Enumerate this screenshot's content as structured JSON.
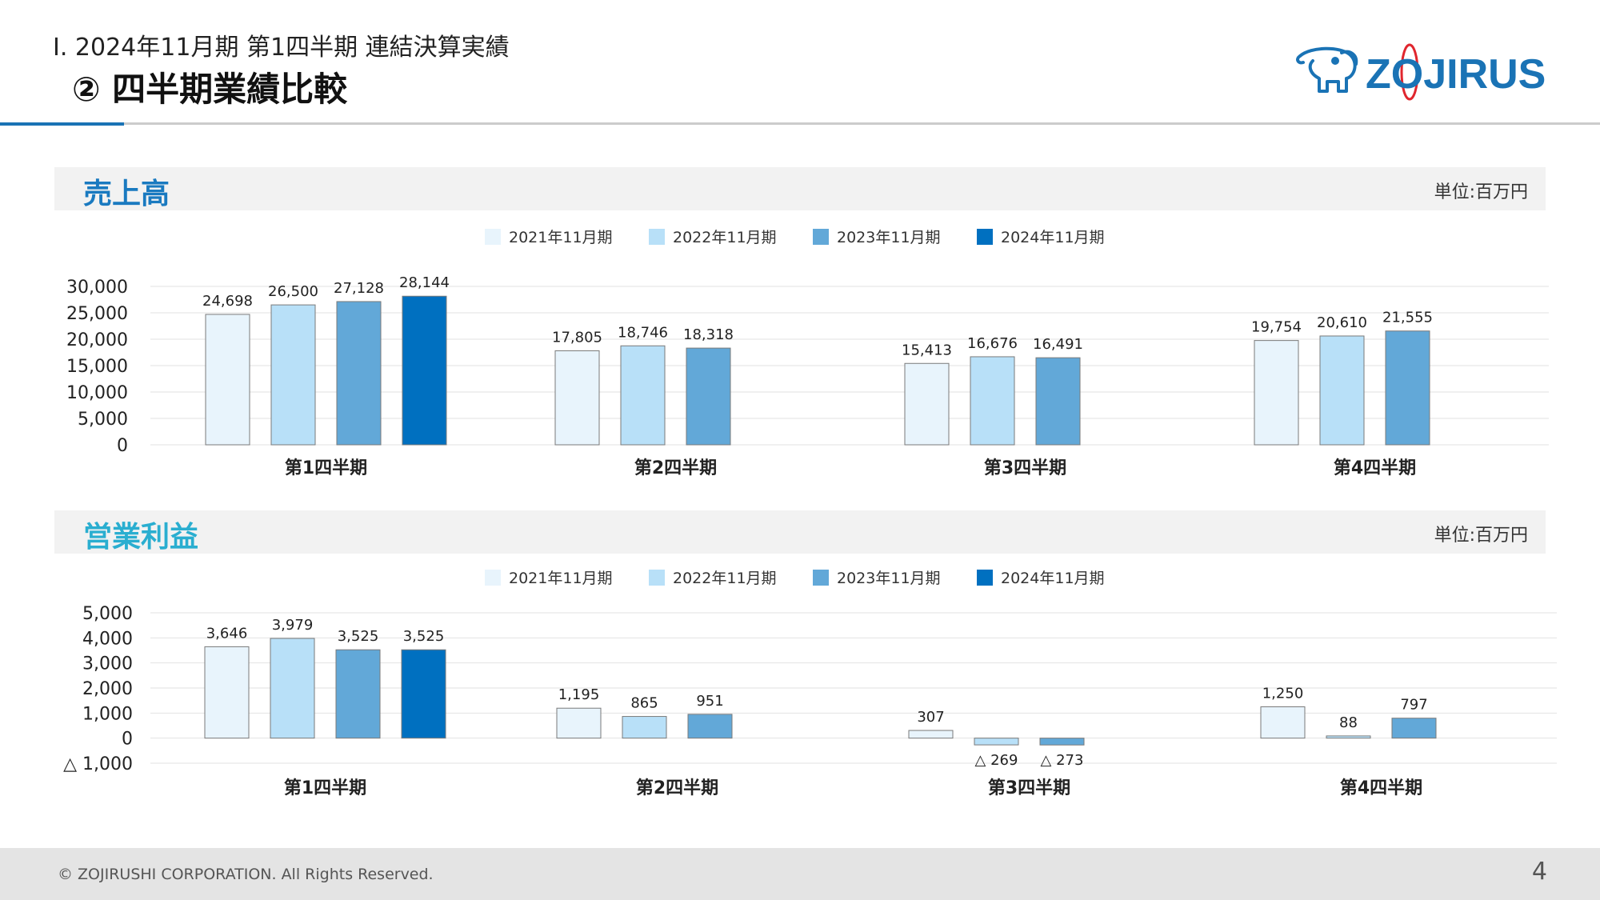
{
  "header": {
    "subtitle": "Ⅰ. 2024年11月期 第1四半期  連結決算実績",
    "title": "② 四半期業績比較",
    "logo_text": "ZOJIRUSHI"
  },
  "colors": {
    "accent": "#1a73b5",
    "series": [
      "#e8f4fc",
      "#b8e0f8",
      "#62a8d8",
      "#0070c0"
    ],
    "sales_title": "#1a7ac0",
    "profit_title": "#2aaed0"
  },
  "sales_section": {
    "title": "売上高",
    "unit": "単位:百万円"
  },
  "profit_section": {
    "title": "営業利益",
    "unit": "単位:百万円"
  },
  "chart_data": [
    {
      "type": "bar",
      "categories": [
        "第1四半期",
        "第2四半期",
        "第3四半期",
        "第4四半期"
      ],
      "series": [
        {
          "name": "2021年11月期",
          "values": [
            24698,
            17805,
            15413,
            19754
          ],
          "labels": [
            "24,698",
            "17,805",
            "15,413",
            "19,754"
          ]
        },
        {
          "name": "2022年11月期",
          "values": [
            26500,
            18746,
            16676,
            20610
          ],
          "labels": [
            "26,500",
            "18,746",
            "16,676",
            "20,610"
          ]
        },
        {
          "name": "2023年11月期",
          "values": [
            27128,
            18318,
            16491,
            21555
          ],
          "labels": [
            "27,128",
            "18,318",
            "16,491",
            "21,555"
          ]
        },
        {
          "name": "2024年11月期",
          "values": [
            28144,
            null,
            null,
            null
          ],
          "labels": [
            "28,144",
            "",
            "",
            ""
          ]
        }
      ],
      "yticks": [
        0,
        5000,
        10000,
        15000,
        20000,
        25000,
        30000
      ],
      "ytick_labels": [
        "0",
        "5,000",
        "10,000",
        "15,000",
        "20,000",
        "25,000",
        "30,000"
      ],
      "ylim": [
        0,
        30000
      ],
      "grid": true,
      "legend": "top-center"
    },
    {
      "type": "bar",
      "categories": [
        "第1四半期",
        "第2四半期",
        "第3四半期",
        "第4四半期"
      ],
      "series": [
        {
          "name": "2021年11月期",
          "values": [
            3646,
            1195,
            307,
            1250
          ],
          "labels": [
            "3,646",
            "1,195",
            "307",
            "1,250"
          ]
        },
        {
          "name": "2022年11月期",
          "values": [
            3979,
            865,
            -269,
            88
          ],
          "labels": [
            "3,979",
            "865",
            "△ 269",
            "88"
          ]
        },
        {
          "name": "2023年11月期",
          "values": [
            3525,
            951,
            -273,
            797
          ],
          "labels": [
            "3,525",
            "951",
            "△ 273",
            "797"
          ]
        },
        {
          "name": "2024年11月期",
          "values": [
            3525,
            null,
            null,
            null
          ],
          "labels": [
            "3,525",
            "",
            "",
            ""
          ]
        }
      ],
      "yticks": [
        -1000,
        0,
        1000,
        2000,
        3000,
        4000,
        5000
      ],
      "ytick_labels": [
        "△ 1,000",
        "0",
        "1,000",
        "2,000",
        "3,000",
        "4,000",
        "5,000"
      ],
      "ylim": [
        -1000,
        5000
      ],
      "grid": true,
      "legend": "top-center"
    }
  ],
  "footer": {
    "copyright": "© ZOJIRUSHI CORPORATION. All Rights Reserved.",
    "page": "4"
  }
}
